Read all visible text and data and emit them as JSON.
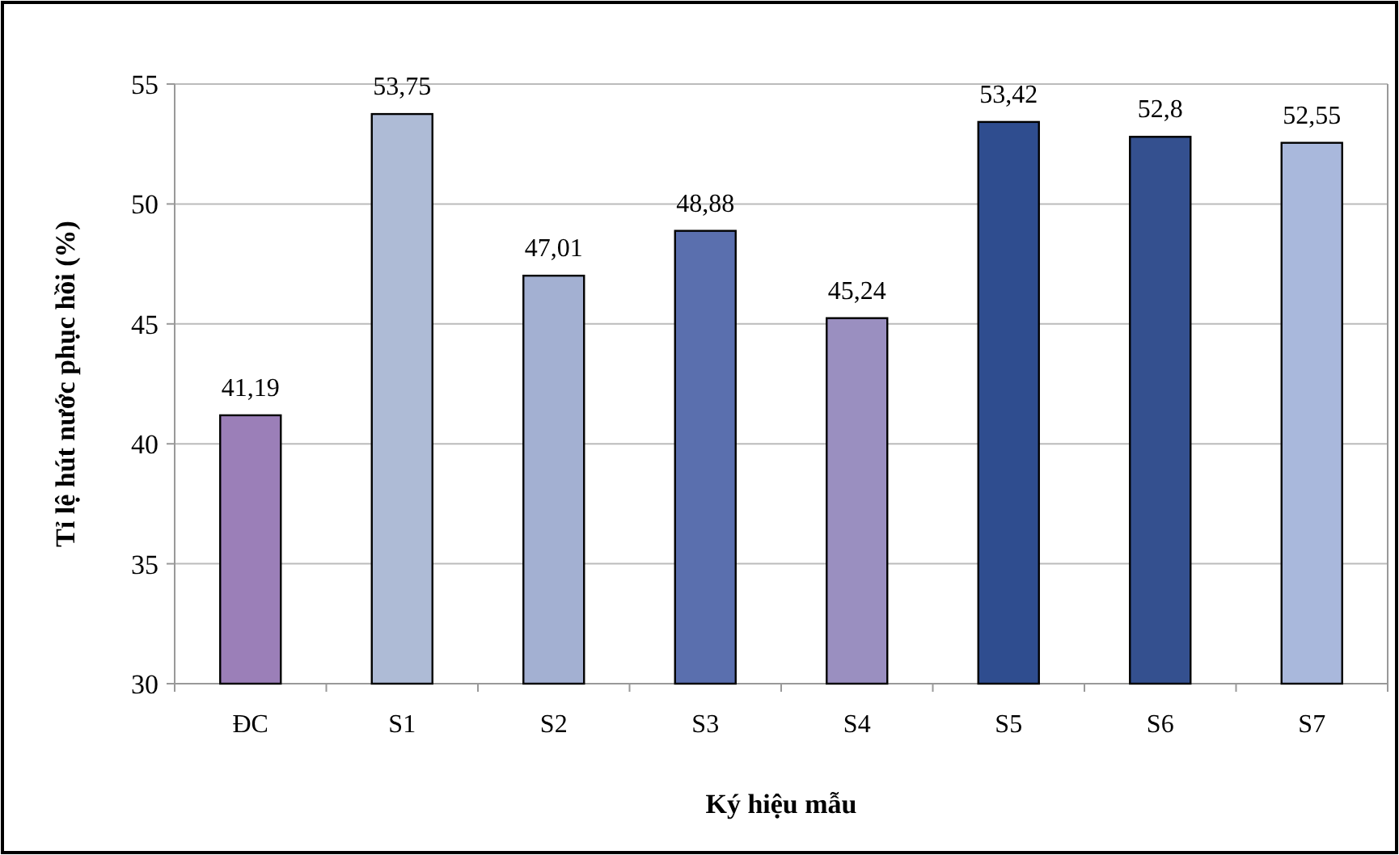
{
  "chart_data": {
    "type": "bar",
    "xlabel": "Ký hiệu mẫu",
    "ylabel": "Tỉ lệ hút nước phục hồi (%)",
    "categories": [
      "ĐC",
      "S1",
      "S2",
      "S3",
      "S4",
      "S5",
      "S6",
      "S7"
    ],
    "values": [
      41.19,
      53.75,
      47.01,
      48.88,
      45.24,
      53.42,
      52.8,
      52.55
    ],
    "value_labels": [
      "41,19",
      "53,75",
      "47,01",
      "48,88",
      "45,24",
      "53,42",
      "52,8",
      "52,55"
    ],
    "colors": [
      "#9b7fb8",
      "#aebbd6",
      "#a3b0d2",
      "#5a6fae",
      "#9a8fc0",
      "#2f4d8f",
      "#34508f",
      "#a9b8dc"
    ],
    "ylim": [
      30,
      55
    ],
    "yticks": [
      30,
      35,
      40,
      45,
      50,
      55
    ],
    "grid": "y"
  }
}
